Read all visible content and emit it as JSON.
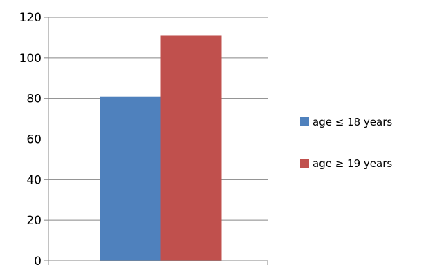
{
  "chart_data": {
    "type": "bar",
    "title": "",
    "xlabel": "",
    "ylabel": "",
    "categories": [
      ""
    ],
    "series": [
      {
        "name": "age ≤ 18 years",
        "values": [
          81
        ],
        "color": "#4f81bd"
      },
      {
        "name": "age ≥ 19 years",
        "values": [
          111
        ],
        "color": "#c0504d"
      }
    ],
    "ylim": [
      0,
      120
    ],
    "yticks": [
      0,
      20,
      40,
      60,
      80,
      100,
      120
    ],
    "grid": true,
    "legend_position": "right"
  }
}
